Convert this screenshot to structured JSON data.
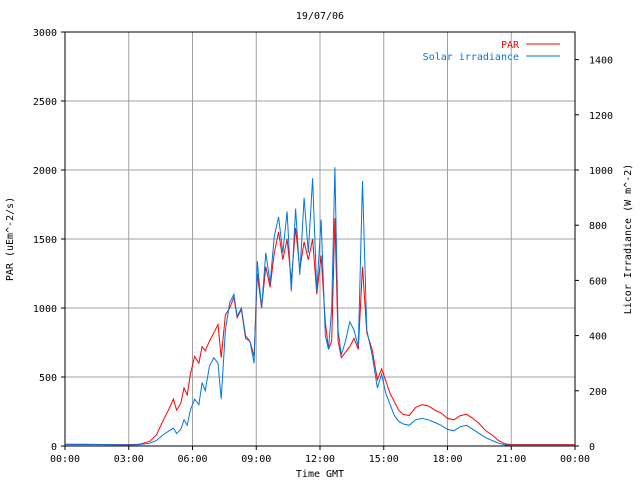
{
  "chart_data": {
    "type": "line",
    "title": "19/07/06",
    "xlabel": "Time GMT",
    "ylabel": "PAR (uEm^-2/s)",
    "y2label": "Licor Irradiance (W m^-2)",
    "x_unit": "hours GMT",
    "xlim": [
      0,
      24
    ],
    "ylim": [
      0,
      3000
    ],
    "y2lim": [
      0,
      1500
    ],
    "x_ticks": [
      "00:00",
      "03:00",
      "06:00",
      "09:00",
      "12:00",
      "15:00",
      "18:00",
      "21:00",
      "00:00"
    ],
    "y_ticks": [
      "0",
      "500",
      "1000",
      "1500",
      "2000",
      "2500",
      "3000"
    ],
    "y2_ticks": [
      "0",
      "200",
      "400",
      "600",
      "800",
      "1000",
      "1200",
      "1400"
    ],
    "grid": true,
    "legend_position": "top-right",
    "series": [
      {
        "name": "PAR",
        "color": "#ff0000",
        "axis": "left",
        "points": [
          [
            0,
            12
          ],
          [
            1,
            12
          ],
          [
            2,
            10
          ],
          [
            3,
            10
          ],
          [
            3.5,
            12
          ],
          [
            4,
            35
          ],
          [
            4.3,
            80
          ],
          [
            4.6,
            180
          ],
          [
            4.9,
            270
          ],
          [
            5.1,
            340
          ],
          [
            5.25,
            260
          ],
          [
            5.45,
            310
          ],
          [
            5.6,
            420
          ],
          [
            5.75,
            370
          ],
          [
            5.9,
            520
          ],
          [
            6.1,
            650
          ],
          [
            6.3,
            600
          ],
          [
            6.45,
            720
          ],
          [
            6.6,
            690
          ],
          [
            6.8,
            760
          ],
          [
            7.0,
            820
          ],
          [
            7.2,
            880
          ],
          [
            7.35,
            640
          ],
          [
            7.55,
            950
          ],
          [
            7.75,
            1000
          ],
          [
            7.95,
            1080
          ],
          [
            8.1,
            930
          ],
          [
            8.3,
            990
          ],
          [
            8.5,
            780
          ],
          [
            8.7,
            760
          ],
          [
            8.9,
            650
          ],
          [
            9.05,
            1250
          ],
          [
            9.25,
            1000
          ],
          [
            9.45,
            1300
          ],
          [
            9.65,
            1150
          ],
          [
            9.85,
            1400
          ],
          [
            10.05,
            1550
          ],
          [
            10.25,
            1350
          ],
          [
            10.45,
            1500
          ],
          [
            10.65,
            1200
          ],
          [
            10.85,
            1580
          ],
          [
            11.05,
            1280
          ],
          [
            11.25,
            1480
          ],
          [
            11.45,
            1350
          ],
          [
            11.65,
            1500
          ],
          [
            11.85,
            1100
          ],
          [
            12.05,
            1380
          ],
          [
            12.25,
            900
          ],
          [
            12.4,
            700
          ],
          [
            12.55,
            760
          ],
          [
            12.7,
            1650
          ],
          [
            12.85,
            760
          ],
          [
            13.0,
            640
          ],
          [
            13.2,
            680
          ],
          [
            13.4,
            720
          ],
          [
            13.6,
            780
          ],
          [
            13.8,
            700
          ],
          [
            14.0,
            1300
          ],
          [
            14.2,
            820
          ],
          [
            14.45,
            700
          ],
          [
            14.7,
            480
          ],
          [
            14.9,
            560
          ],
          [
            15.1,
            470
          ],
          [
            15.3,
            380
          ],
          [
            15.5,
            320
          ],
          [
            15.7,
            260
          ],
          [
            15.9,
            230
          ],
          [
            16.2,
            220
          ],
          [
            16.5,
            280
          ],
          [
            16.8,
            300
          ],
          [
            17.1,
            290
          ],
          [
            17.4,
            260
          ],
          [
            17.7,
            240
          ],
          [
            18.0,
            200
          ],
          [
            18.3,
            190
          ],
          [
            18.6,
            220
          ],
          [
            18.9,
            230
          ],
          [
            19.2,
            200
          ],
          [
            19.5,
            160
          ],
          [
            19.8,
            110
          ],
          [
            20.1,
            80
          ],
          [
            20.4,
            40
          ],
          [
            20.7,
            15
          ],
          [
            21,
            10
          ],
          [
            22,
            10
          ],
          [
            23,
            10
          ],
          [
            24,
            10
          ]
        ]
      },
      {
        "name": "Solar irradiance",
        "color": "#0077dd",
        "axis": "right",
        "points": [
          [
            0,
            5
          ],
          [
            1,
            5
          ],
          [
            2,
            5
          ],
          [
            3,
            4
          ],
          [
            3.5,
            5
          ],
          [
            4,
            10
          ],
          [
            4.3,
            20
          ],
          [
            4.6,
            40
          ],
          [
            4.9,
            55
          ],
          [
            5.1,
            65
          ],
          [
            5.25,
            45
          ],
          [
            5.45,
            60
          ],
          [
            5.6,
            95
          ],
          [
            5.75,
            75
          ],
          [
            5.9,
            130
          ],
          [
            6.1,
            170
          ],
          [
            6.3,
            150
          ],
          [
            6.45,
            230
          ],
          [
            6.6,
            200
          ],
          [
            6.8,
            290
          ],
          [
            7.0,
            320
          ],
          [
            7.2,
            300
          ],
          [
            7.35,
            170
          ],
          [
            7.55,
            420
          ],
          [
            7.75,
            520
          ],
          [
            7.95,
            550
          ],
          [
            8.1,
            470
          ],
          [
            8.3,
            500
          ],
          [
            8.5,
            400
          ],
          [
            8.7,
            380
          ],
          [
            8.9,
            300
          ],
          [
            9.05,
            670
          ],
          [
            9.25,
            500
          ],
          [
            9.45,
            700
          ],
          [
            9.65,
            590
          ],
          [
            9.85,
            760
          ],
          [
            10.05,
            830
          ],
          [
            10.25,
            700
          ],
          [
            10.45,
            850
          ],
          [
            10.65,
            560
          ],
          [
            10.85,
            860
          ],
          [
            11.05,
            620
          ],
          [
            11.25,
            900
          ],
          [
            11.45,
            700
          ],
          [
            11.65,
            970
          ],
          [
            11.85,
            560
          ],
          [
            12.05,
            820
          ],
          [
            12.25,
            400
          ],
          [
            12.4,
            350
          ],
          [
            12.55,
            500
          ],
          [
            12.7,
            1010
          ],
          [
            12.85,
            420
          ],
          [
            13.0,
            330
          ],
          [
            13.2,
            380
          ],
          [
            13.4,
            450
          ],
          [
            13.6,
            420
          ],
          [
            13.8,
            360
          ],
          [
            14.0,
            960
          ],
          [
            14.2,
            420
          ],
          [
            14.45,
            330
          ],
          [
            14.7,
            210
          ],
          [
            14.9,
            260
          ],
          [
            15.1,
            190
          ],
          [
            15.3,
            150
          ],
          [
            15.5,
            110
          ],
          [
            15.7,
            90
          ],
          [
            15.9,
            80
          ],
          [
            16.2,
            75
          ],
          [
            16.5,
            95
          ],
          [
            16.8,
            100
          ],
          [
            17.1,
            95
          ],
          [
            17.4,
            85
          ],
          [
            17.7,
            75
          ],
          [
            18.0,
            60
          ],
          [
            18.3,
            55
          ],
          [
            18.6,
            70
          ],
          [
            18.9,
            75
          ],
          [
            19.2,
            60
          ],
          [
            19.5,
            45
          ],
          [
            19.8,
            30
          ],
          [
            20.1,
            20
          ],
          [
            20.4,
            10
          ],
          [
            20.7,
            4
          ],
          [
            21,
            3
          ],
          [
            22,
            3
          ],
          [
            23,
            3
          ],
          [
            24,
            3
          ]
        ]
      }
    ]
  }
}
